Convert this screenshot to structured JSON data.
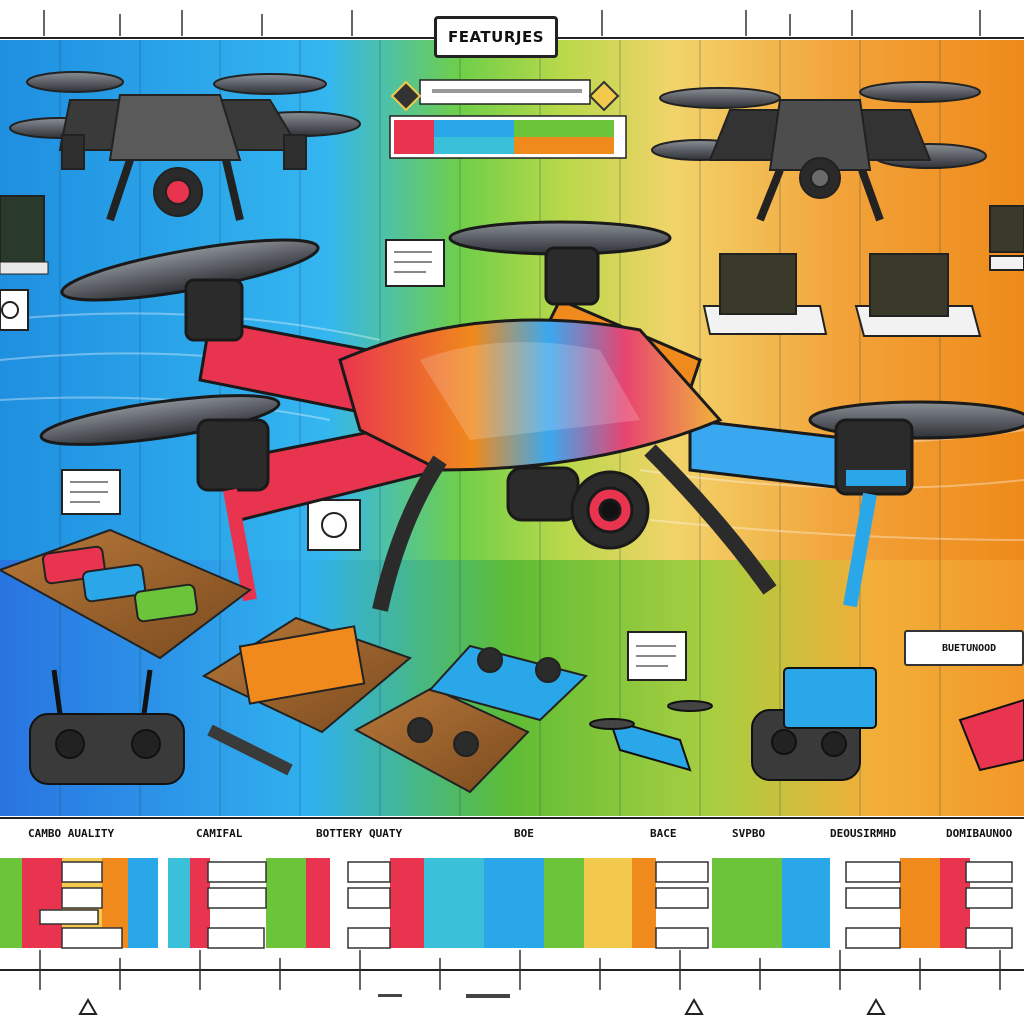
{
  "header": {
    "title": "FEATURJES"
  },
  "side_tag": {
    "label": "BUETUNOOD"
  },
  "comparison_strip": {
    "labels": [
      "CAMBO AUALITY",
      "CAMIFAL",
      "BOTTERY QUATY",
      "BOE",
      "BACE",
      "SVPBO",
      "DEOUSIRMHD",
      "DOMIBAUNOO"
    ]
  },
  "palette": {
    "blue": "#2aa7e8",
    "green": "#6cc43a",
    "yellow": "#f2c94c",
    "orange": "#f08a1c",
    "red": "#e8344e",
    "dark": "#2b2b2b"
  }
}
